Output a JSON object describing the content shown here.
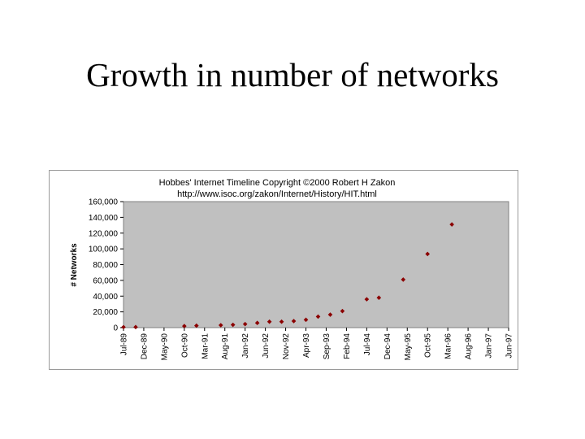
{
  "slide": {
    "title": "Growth in number of networks"
  },
  "chart_data": {
    "type": "scatter",
    "title": "Hobbes' Internet Timeline Copyright ©2000 Robert H Zakon",
    "subtitle": "http://www.isoc.org/zakon/Internet/History/HIT.html",
    "xlabel": "",
    "ylabel": "# Networks",
    "ylim": [
      0,
      160000
    ],
    "yticks": [
      0,
      20000,
      40000,
      60000,
      80000,
      100000,
      120000,
      140000,
      160000
    ],
    "ytick_labels": [
      "0",
      "20,000",
      "40,000",
      "60,000",
      "80,000",
      "100,000",
      "120,000",
      "140,000",
      "160,000"
    ],
    "x_categories": [
      "Jul-89",
      "Dec-89",
      "May-90",
      "Oct-90",
      "Mar-91",
      "Aug-91",
      "Jan-92",
      "Jun-92",
      "Nov-92",
      "Apr-93",
      "Sep-93",
      "Feb-94",
      "Jul-94",
      "Dec-94",
      "May-95",
      "Oct-95",
      "Mar-96",
      "Aug-96",
      "Jan-97",
      "Jun-97"
    ],
    "x_range": [
      "Jul-89",
      "Jun-97"
    ],
    "grid": false,
    "legend": "none",
    "marker_color": "#8b0000",
    "plot_background": "#c0c0c0",
    "points": [
      {
        "x": "Jul-89",
        "y": 650
      },
      {
        "x": "Oct-89",
        "y": 700
      },
      {
        "x": "Oct-90",
        "y": 2000
      },
      {
        "x": "Jan-91",
        "y": 2500
      },
      {
        "x": "Jul-91",
        "y": 3100
      },
      {
        "x": "Oct-91",
        "y": 3600
      },
      {
        "x": "Jan-92",
        "y": 4500
      },
      {
        "x": "Apr-92",
        "y": 6000
      },
      {
        "x": "Jul-92",
        "y": 7500
      },
      {
        "x": "Oct-92",
        "y": 7500
      },
      {
        "x": "Jan-93",
        "y": 8300
      },
      {
        "x": "Apr-93",
        "y": 10000
      },
      {
        "x": "Jul-93",
        "y": 14000
      },
      {
        "x": "Oct-93",
        "y": 16500
      },
      {
        "x": "Jan-94",
        "y": 21000
      },
      {
        "x": "Jul-94",
        "y": 36000
      },
      {
        "x": "Oct-94",
        "y": 38000
      },
      {
        "x": "Apr-95",
        "y": 61000
      },
      {
        "x": "Oct-95",
        "y": 93500
      },
      {
        "x": "Apr-96",
        "y": 131000
      }
    ]
  }
}
